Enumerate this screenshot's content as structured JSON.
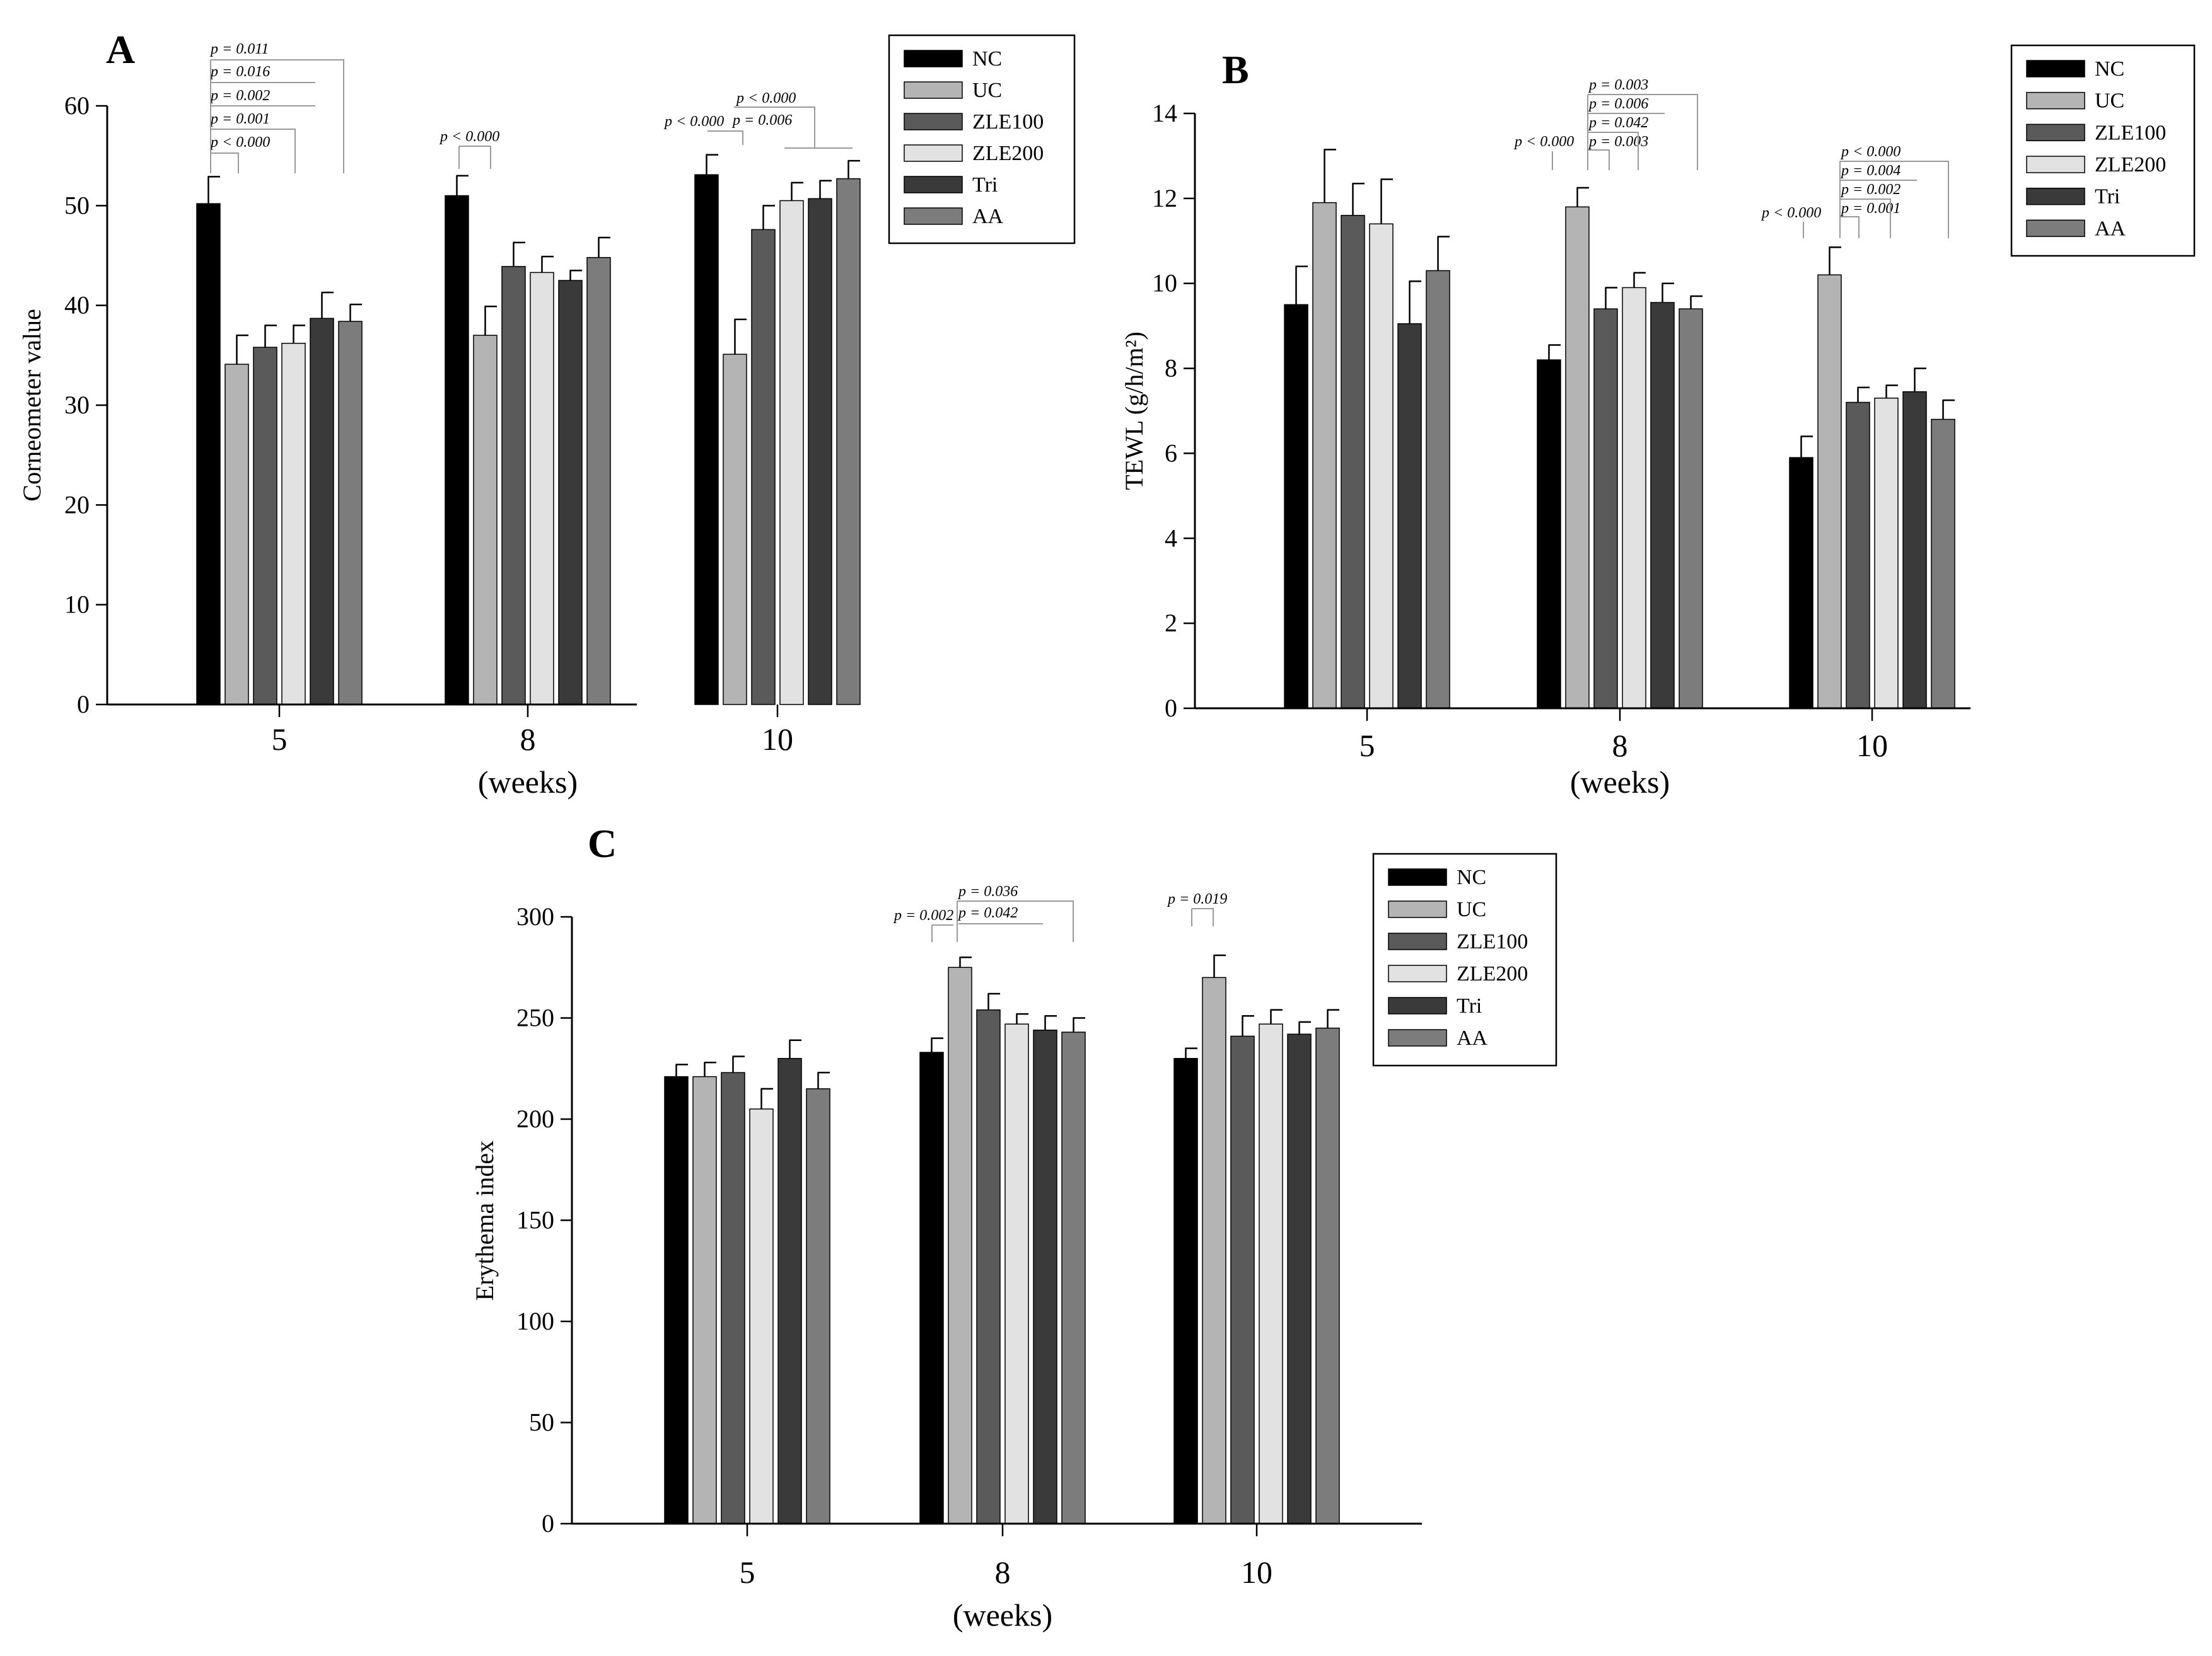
{
  "figure": {
    "group_names": [
      "NC",
      "UC",
      "ZLE100",
      "ZLE200",
      "Tri",
      "AA"
    ],
    "group_colors": [
      "#000000",
      "#b4b4b4",
      "#5a5a5a",
      "#e2e2e2",
      "#3a3a3a",
      "#7c7c7c"
    ]
  },
  "chart_data": [
    {
      "panel": "A",
      "type": "bar",
      "title": "",
      "xlabel": "(weeks)",
      "ylabel": "Corneometer value",
      "categories": [
        "5",
        "8",
        "10"
      ],
      "ylim": [
        0,
        60
      ],
      "yticks": [
        0,
        10,
        20,
        30,
        40,
        50,
        60
      ],
      "series": [
        {
          "name": "NC",
          "values": [
            50.2,
            51.0,
            53.1
          ],
          "errors": [
            2.7,
            2.0,
            2.0
          ]
        },
        {
          "name": "UC",
          "values": [
            34.1,
            37.0,
            35.1
          ],
          "errors": [
            2.9,
            2.9,
            3.5
          ]
        },
        {
          "name": "ZLE100",
          "values": [
            35.8,
            43.9,
            47.6
          ],
          "errors": [
            2.2,
            2.4,
            2.4
          ]
        },
        {
          "name": "ZLE200",
          "values": [
            36.2,
            43.3,
            50.5
          ],
          "errors": [
            1.8,
            1.6,
            1.8
          ]
        },
        {
          "name": "Tri",
          "values": [
            38.7,
            42.5,
            50.7
          ],
          "errors": [
            2.6,
            1.0,
            1.8
          ]
        },
        {
          "name": "AA",
          "values": [
            38.4,
            44.8,
            52.7
          ],
          "errors": [
            1.7,
            2.0,
            1.8
          ]
        }
      ],
      "annotations": [
        "p = 0.011",
        "p = 0.016",
        "p = 0.002",
        "p = 0.001",
        "p < 0.000",
        "p < 0.000",
        "p < 0.000",
        "p < 0.000",
        "p = 0.006"
      ]
    },
    {
      "panel": "B",
      "type": "bar",
      "title": "",
      "xlabel": "(weeks)",
      "ylabel": "TEWL (g/h/m²)",
      "categories": [
        "5",
        "8",
        "10"
      ],
      "ylim": [
        0,
        14
      ],
      "yticks": [
        0,
        2,
        4,
        6,
        8,
        10,
        12,
        14
      ],
      "series": [
        {
          "name": "NC",
          "values": [
            9.5,
            8.2,
            5.9
          ],
          "errors": [
            0.9,
            0.35,
            0.5
          ]
        },
        {
          "name": "UC",
          "values": [
            11.9,
            11.8,
            10.2
          ],
          "errors": [
            1.25,
            0.45,
            0.65
          ]
        },
        {
          "name": "ZLE100",
          "values": [
            11.6,
            9.4,
            7.2
          ],
          "errors": [
            0.75,
            0.5,
            0.35
          ]
        },
        {
          "name": "ZLE200",
          "values": [
            11.4,
            9.9,
            7.3
          ],
          "errors": [
            1.05,
            0.35,
            0.3
          ]
        },
        {
          "name": "Tri",
          "values": [
            9.05,
            9.55,
            7.45
          ],
          "errors": [
            1.0,
            0.45,
            0.55
          ]
        },
        {
          "name": "AA",
          "values": [
            10.3,
            9.4,
            6.8
          ],
          "errors": [
            0.8,
            0.3,
            0.45
          ]
        }
      ],
      "annotations": [
        "p = 0.003",
        "p = 0.006",
        "p = 0.042",
        "p = 0.003",
        "p < 0.000",
        "p < 0.000",
        "p = 0.004",
        "p = 0.002",
        "p = 0.001",
        "p < 0.000"
      ]
    },
    {
      "panel": "C",
      "type": "bar",
      "title": "",
      "xlabel": "(weeks)",
      "ylabel": "Erythema index",
      "categories": [
        "5",
        "8",
        "10"
      ],
      "ylim": [
        0,
        300
      ],
      "yticks": [
        0,
        50,
        100,
        150,
        200,
        250,
        300
      ],
      "series": [
        {
          "name": "NC",
          "values": [
            221,
            233,
            230
          ],
          "errors": [
            6,
            7,
            5
          ]
        },
        {
          "name": "UC",
          "values": [
            221,
            275,
            270
          ],
          "errors": [
            7,
            5,
            11
          ]
        },
        {
          "name": "ZLE100",
          "values": [
            223,
            254,
            241
          ],
          "errors": [
            8,
            8,
            10
          ]
        },
        {
          "name": "ZLE200",
          "values": [
            205,
            247,
            247
          ],
          "errors": [
            10,
            5,
            7
          ]
        },
        {
          "name": "Tri",
          "values": [
            230,
            244,
            242
          ],
          "errors": [
            9,
            7,
            6
          ]
        },
        {
          "name": "AA",
          "values": [
            215,
            243,
            245
          ],
          "errors": [
            8,
            7,
            9
          ]
        }
      ],
      "annotations": [
        "p = 0.036",
        "p = 0.002",
        "p = 0.042",
        "p = 0.019"
      ]
    }
  ]
}
